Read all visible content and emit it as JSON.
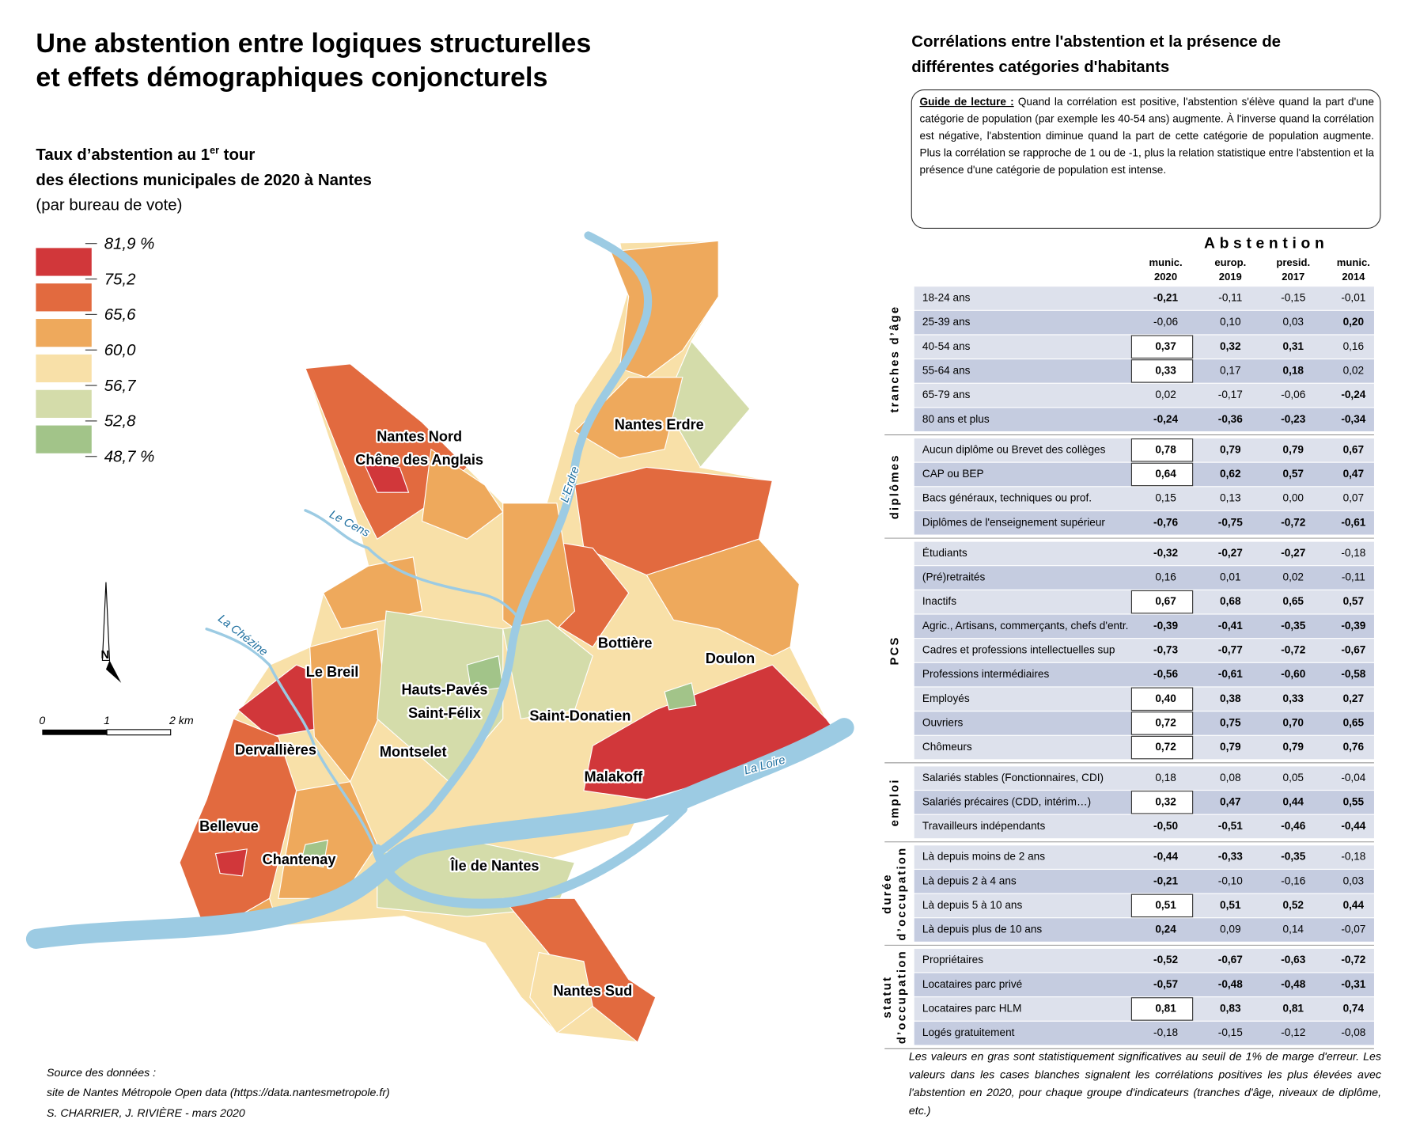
{
  "title": [
    "Une abstention entre logiques structurelles",
    "et effets démographiques conjoncturels"
  ],
  "map": {
    "legend_title": {
      "line1": "Taux d’abstention au 1",
      "superscript": "er",
      "line1_end": " tour",
      "line2": "des élections municipales de 2020 à Nantes",
      "line3": "(par bureau de vote)"
    },
    "legend": {
      "breaks": [
        "81,9 %",
        "75,2",
        "65,6",
        "60,0",
        "56,7",
        "52,8",
        "48,7 %"
      ],
      "colors": [
        "#d1373a",
        "#e26a3f",
        "#eea95c",
        "#f8e0a8",
        "#d4dcaa",
        "#a2c489"
      ]
    },
    "north": "N",
    "scale": [
      "0",
      "1",
      "2 km"
    ],
    "rivers": [
      "Le Cens",
      "La Chézine",
      "L’Erdre",
      "La Loire"
    ],
    "districts": [
      [
        "Nantes Nord",
        "Chêne des Anglais"
      ],
      [
        "Nantes Erdre"
      ],
      [
        "Le Breil"
      ],
      [
        "Hauts-Pavés",
        "Saint-Félix"
      ],
      [
        "Bottière"
      ],
      [
        "Doulon"
      ],
      [
        "Saint-Donatien"
      ],
      [
        "Dervallières"
      ],
      [
        "Montselet"
      ],
      [
        "Malakoff"
      ],
      [
        "Bellevue"
      ],
      [
        "Chantenay"
      ],
      [
        "Île de Nantes"
      ],
      [
        "Nantes Sud"
      ]
    ],
    "sources": [
      "Source des données :",
      "site de Nantes Métropole Open data (https://data.nantesmetropole.fr)",
      "S. CHARRIER, J. RIVIÈRE - mars 2020"
    ]
  },
  "table": {
    "title": [
      "Corrélations entre l'abstention et la présence de",
      "différentes catégories d'habitants"
    ],
    "guide": {
      "label": "Guide de lecture :",
      "text": "Quand la corrélation est positive, l'abstention s'élève quand la part d'une catégorie de population (par exemple les 40-54 ans) augmente. À l'inverse quand la corrélation est négative, l'abstention diminue quand la part de cette catégorie de population augmente. Plus la corrélation se rapproche de 1 ou de -1, plus la relation statistique entre l'abstention et la présence d'une catégorie de population est intense."
    },
    "header": "Abstention",
    "columns": [
      [
        "munic.",
        "2020"
      ],
      [
        "europ.",
        "2019"
      ],
      [
        "presid.",
        "2017"
      ],
      [
        "munic.",
        "2014"
      ]
    ],
    "groups": [
      {
        "name": [
          "tranches d’âge"
        ],
        "rows": [
          {
            "label": "18-24 ans",
            "values": [
              "-0,21",
              "-0,11",
              "-0,15",
              "-0,01"
            ],
            "bold": [
              true,
              false,
              false,
              false
            ],
            "boxed": false
          },
          {
            "label": "25-39 ans",
            "values": [
              "-0,06",
              "0,10",
              "0,03",
              "0,20"
            ],
            "bold": [
              false,
              false,
              false,
              true
            ],
            "boxed": false
          },
          {
            "label": "40-54 ans",
            "values": [
              "0,37",
              "0,32",
              "0,31",
              "0,16"
            ],
            "bold": [
              true,
              true,
              true,
              false
            ],
            "boxed": true
          },
          {
            "label": "55-64 ans",
            "values": [
              "0,33",
              "0,17",
              "0,18",
              "0,02"
            ],
            "bold": [
              true,
              false,
              true,
              false
            ],
            "boxed": true
          },
          {
            "label": "65-79 ans",
            "values": [
              "0,02",
              "-0,17",
              "-0,06",
              "-0,24"
            ],
            "bold": [
              false,
              false,
              false,
              true
            ],
            "boxed": false
          },
          {
            "label": "80 ans et plus",
            "values": [
              "-0,24",
              "-0,36",
              "-0,23",
              "-0,34"
            ],
            "bold": [
              true,
              true,
              true,
              true
            ],
            "boxed": false
          }
        ]
      },
      {
        "name": [
          "diplômes"
        ],
        "rows": [
          {
            "label": "Aucun diplôme ou Brevet des collèges",
            "values": [
              "0,78",
              "0,79",
              "0,79",
              "0,67"
            ],
            "bold": [
              true,
              true,
              true,
              true
            ],
            "boxed": true
          },
          {
            "label": "CAP ou BEP",
            "values": [
              "0,64",
              "0,62",
              "0,57",
              "0,47"
            ],
            "bold": [
              true,
              true,
              true,
              true
            ],
            "boxed": true
          },
          {
            "label": "Bacs généraux, techniques ou prof.",
            "values": [
              "0,15",
              "0,13",
              "0,00",
              "0,07"
            ],
            "bold": [
              false,
              false,
              false,
              false
            ],
            "boxed": false
          },
          {
            "label": "Diplômes de l'enseignement supérieur",
            "values": [
              "-0,76",
              "-0,75",
              "-0,72",
              "-0,61"
            ],
            "bold": [
              true,
              true,
              true,
              true
            ],
            "boxed": false
          }
        ]
      },
      {
        "name": [
          "PCS"
        ],
        "rows": [
          {
            "label": "Étudiants",
            "values": [
              "-0,32",
              "-0,27",
              "-0,27",
              "-0,18"
            ],
            "bold": [
              true,
              true,
              true,
              false
            ],
            "boxed": false
          },
          {
            "label": "(Pré)retraités",
            "values": [
              "0,16",
              "0,01",
              "0,02",
              "-0,11"
            ],
            "bold": [
              false,
              false,
              false,
              false
            ],
            "boxed": false
          },
          {
            "label": "Inactifs",
            "values": [
              "0,67",
              "0,68",
              "0,65",
              "0,57"
            ],
            "bold": [
              true,
              true,
              true,
              true
            ],
            "boxed": true
          },
          {
            "label": "Agric., Artisans, commerçants, chefs d'entr.",
            "values": [
              "-0,39",
              "-0,41",
              "-0,35",
              "-0,39"
            ],
            "bold": [
              true,
              true,
              true,
              true
            ],
            "boxed": false
          },
          {
            "label": "Cadres et professions intellectuelles sup",
            "values": [
              "-0,73",
              "-0,77",
              "-0,72",
              "-0,67"
            ],
            "bold": [
              true,
              true,
              true,
              true
            ],
            "boxed": false
          },
          {
            "label": "Professions intermédiaires",
            "values": [
              "-0,56",
              "-0,61",
              "-0,60",
              "-0,58"
            ],
            "bold": [
              true,
              true,
              true,
              true
            ],
            "boxed": false
          },
          {
            "label": "Employés",
            "values": [
              "0,40",
              "0,38",
              "0,33",
              "0,27"
            ],
            "bold": [
              true,
              true,
              true,
              true
            ],
            "boxed": true
          },
          {
            "label": "Ouvriers",
            "values": [
              "0,72",
              "0,75",
              "0,70",
              "0,65"
            ],
            "bold": [
              true,
              true,
              true,
              true
            ],
            "boxed": true
          },
          {
            "label": "Chômeurs",
            "values": [
              "0,72",
              "0,79",
              "0,79",
              "0,76"
            ],
            "bold": [
              true,
              true,
              true,
              true
            ],
            "boxed": true
          }
        ]
      },
      {
        "name": [
          "emploi"
        ],
        "rows": [
          {
            "label": "Salariés stables (Fonctionnaires, CDI)",
            "values": [
              "0,18",
              "0,08",
              "0,05",
              "-0,04"
            ],
            "bold": [
              false,
              false,
              false,
              false
            ],
            "boxed": false
          },
          {
            "label": "Salariés précaires (CDD, intérim…)",
            "values": [
              "0,32",
              "0,47",
              "0,44",
              "0,55"
            ],
            "bold": [
              true,
              true,
              true,
              true
            ],
            "boxed": true
          },
          {
            "label": "Travailleurs indépendants",
            "values": [
              "-0,50",
              "-0,51",
              "-0,46",
              "-0,44"
            ],
            "bold": [
              true,
              true,
              true,
              true
            ],
            "boxed": false
          }
        ]
      },
      {
        "name": [
          "durée",
          "d’occupation"
        ],
        "rows": [
          {
            "label": "Là depuis moins de 2 ans",
            "values": [
              "-0,44",
              "-0,33",
              "-0,35",
              "-0,18"
            ],
            "bold": [
              true,
              true,
              true,
              false
            ],
            "boxed": false
          },
          {
            "label": "Là depuis 2 à 4 ans",
            "values": [
              "-0,21",
              "-0,10",
              "-0,16",
              "0,03"
            ],
            "bold": [
              true,
              false,
              false,
              false
            ],
            "boxed": false
          },
          {
            "label": "Là depuis 5 à 10 ans",
            "values": [
              "0,51",
              "0,51",
              "0,52",
              "0,44"
            ],
            "bold": [
              true,
              true,
              true,
              true
            ],
            "boxed": true
          },
          {
            "label": "Là depuis plus de 10 ans",
            "values": [
              "0,24",
              "0,09",
              "0,14",
              "-0,07"
            ],
            "bold": [
              true,
              false,
              false,
              false
            ],
            "boxed": false
          }
        ]
      },
      {
        "name": [
          "statut",
          "d’occupation"
        ],
        "rows": [
          {
            "label": "Propriétaires",
            "values": [
              "-0,52",
              "-0,67",
              "-0,63",
              "-0,72"
            ],
            "bold": [
              true,
              true,
              true,
              true
            ],
            "boxed": false
          },
          {
            "label": "Locataires parc privé",
            "values": [
              "-0,57",
              "-0,48",
              "-0,48",
              "-0,31"
            ],
            "bold": [
              true,
              true,
              true,
              true
            ],
            "boxed": false
          },
          {
            "label": "Locataires parc HLM",
            "values": [
              "0,81",
              "0,83",
              "0,81",
              "0,74"
            ],
            "bold": [
              true,
              true,
              true,
              true
            ],
            "boxed": true
          },
          {
            "label": "Logés gratuitement",
            "values": [
              "-0,18",
              "-0,15",
              "-0,12",
              "-0,08"
            ],
            "bold": [
              false,
              false,
              false,
              false
            ],
            "boxed": false
          }
        ]
      }
    ],
    "footnote": "Les valeurs en gras sont statistiquement significatives au seuil de 1% de marge d'erreur. Les valeurs dans les cases blanches signalent les corrélations positives les plus élevées avec l'abstention en 2020, pour chaque groupe d'indicateurs (tranches d'âge, niveaux de diplôme, etc.)"
  }
}
